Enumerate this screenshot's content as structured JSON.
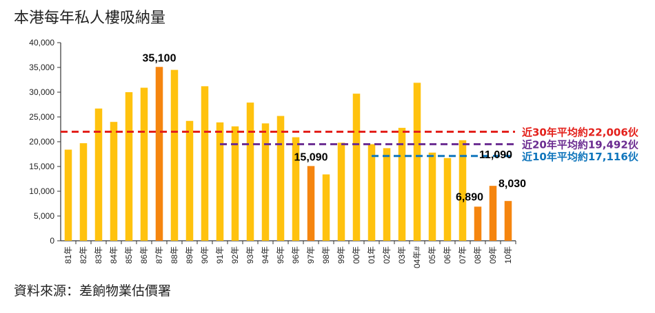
{
  "title": "本港每年私人樓吸納量",
  "source": "資料來源：差餉物業估價署",
  "chart_data": {
    "type": "bar",
    "title": "本港每年私人樓吸納量",
    "xlabel": "",
    "ylabel": "",
    "ylim": [
      0,
      40000
    ],
    "yticks": [
      "0",
      "5,000",
      "10,000",
      "15,000",
      "20,000",
      "25,000",
      "30,000",
      "35,000",
      "40,000"
    ],
    "categories": [
      "81年",
      "82年",
      "83年",
      "84年",
      "85年",
      "86年",
      "87年",
      "88年",
      "89年",
      "90年",
      "91年",
      "92年",
      "93年",
      "94年",
      "95年",
      "96年",
      "97年",
      "98年",
      "99年",
      "00年",
      "01年",
      "02年",
      "03年",
      "04年#",
      "05年",
      "06年",
      "07年",
      "08年",
      "09年",
      "10年"
    ],
    "values": [
      18400,
      19700,
      26700,
      24000,
      30000,
      30900,
      35100,
      34500,
      24200,
      31200,
      23900,
      23100,
      27900,
      23700,
      25200,
      20900,
      15090,
      13400,
      19800,
      29700,
      19500,
      18700,
      22800,
      31900,
      17800,
      16700,
      20300,
      6890,
      11090,
      8030
    ],
    "highlighted": [
      "87年",
      "97年",
      "08年",
      "09年",
      "10年"
    ],
    "colors": {
      "bar": "#FFC20E",
      "highlight": "#F5850F"
    },
    "data_labels": [
      {
        "category": "87年",
        "text": "35,100"
      },
      {
        "category": "97年",
        "text": "15,090"
      },
      {
        "category": "08年",
        "text": "6,890"
      },
      {
        "category": "09年",
        "text": "11,090"
      },
      {
        "category": "10年",
        "text": "8,030"
      }
    ],
    "averages": [
      {
        "label": "近30年平均約22,006伙",
        "value": 22006,
        "from": "81年",
        "to": "10年",
        "color": "#E3201B"
      },
      {
        "label": "近20年平均約19,492伙",
        "value": 19492,
        "from": "91年",
        "to": "10年",
        "color": "#6B2C91"
      },
      {
        "label": "近10年平均約17,116伙",
        "value": 17116,
        "from": "01年",
        "to": "10年",
        "color": "#0F75BC"
      }
    ],
    "grid": false,
    "legend": "none"
  }
}
